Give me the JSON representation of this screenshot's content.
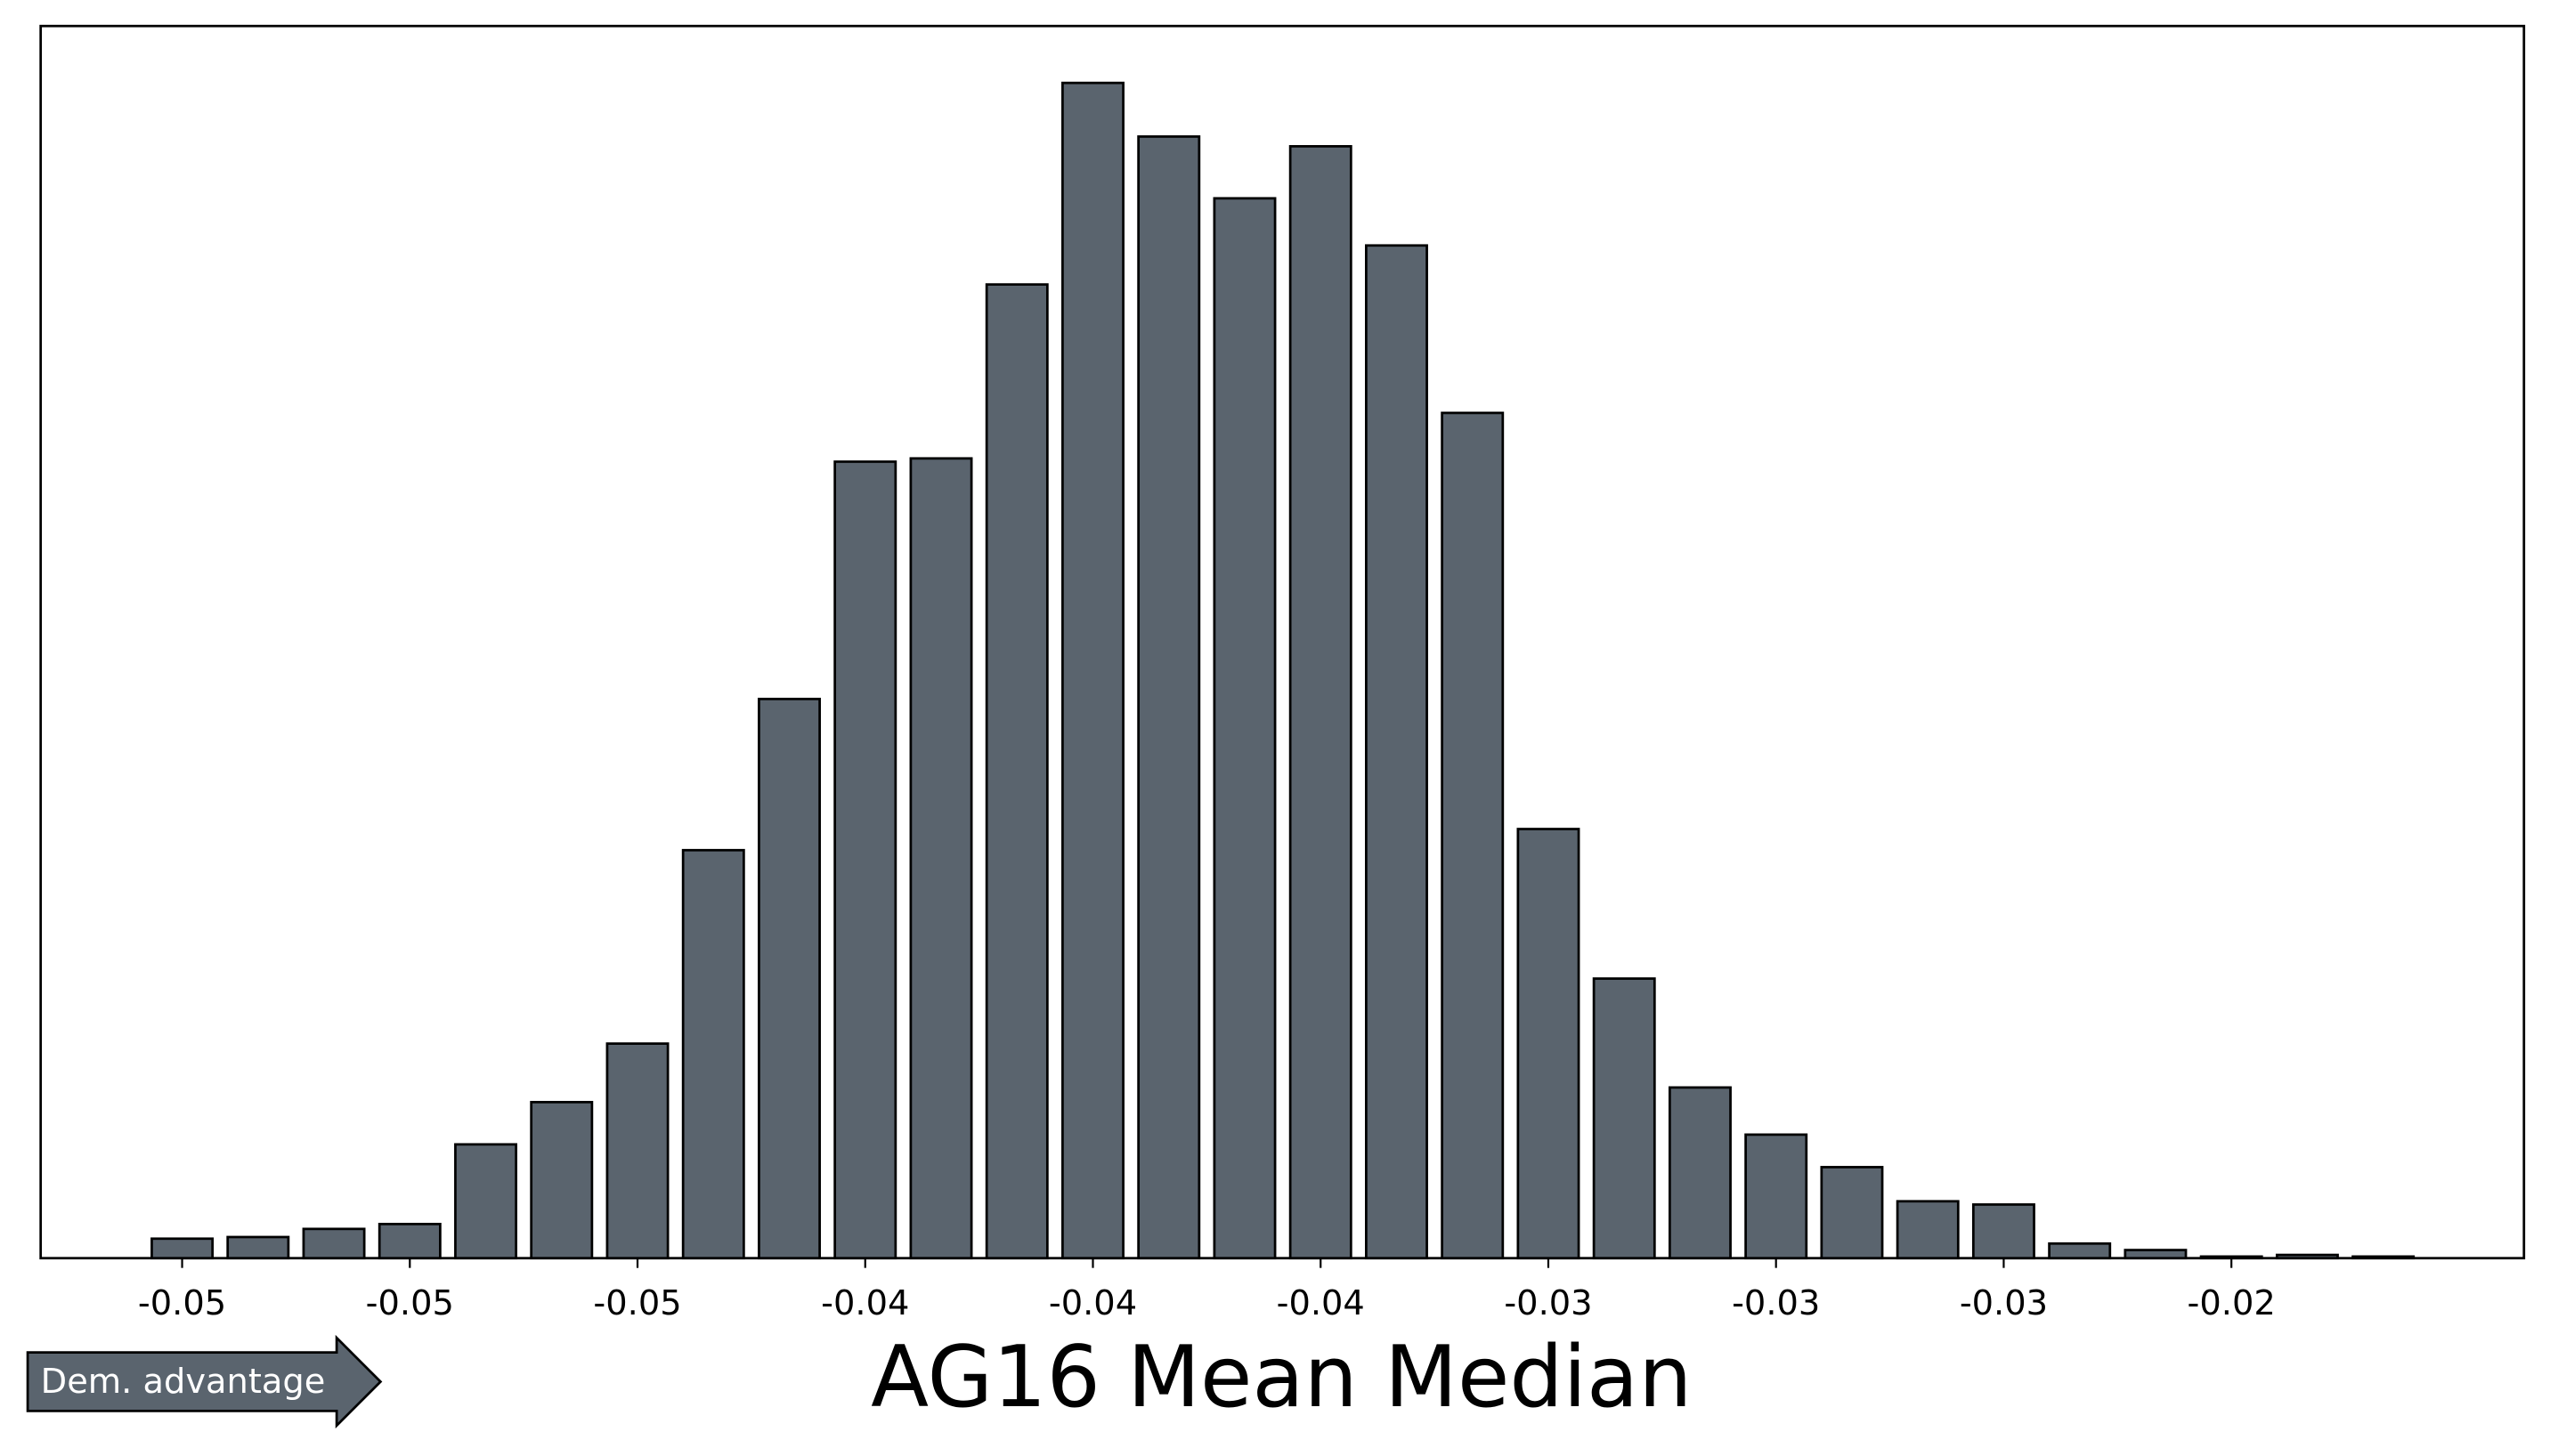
{
  "chart_data": {
    "type": "histogram",
    "xlabel": "AG16 Mean Median",
    "annotation": "Dem. advantage",
    "color": "#5a646e",
    "bins": [
      -0.05405,
      -0.05295,
      -0.05185,
      -0.05075,
      -0.04965,
      -0.04855,
      -0.04745,
      -0.04635,
      -0.04525,
      -0.04415,
      -0.04305,
      -0.04195,
      -0.04085,
      -0.03975,
      -0.03865,
      -0.03755,
      -0.03645,
      -0.03535,
      -0.03425,
      -0.03315,
      -0.03205,
      -0.03095,
      -0.02985,
      -0.02875,
      -0.02765,
      -0.02655,
      -0.02545,
      -0.02435,
      -0.02325,
      -0.02215,
      -0.02105
    ],
    "values": [
      12,
      13,
      18,
      21,
      70,
      96,
      132,
      251,
      344,
      490,
      492,
      599,
      723,
      690,
      652,
      684,
      623,
      520,
      264,
      172,
      105,
      76,
      56,
      35,
      33,
      9,
      5,
      1,
      2,
      1
    ],
    "xlim": [
      -0.05555,
      -0.01956
    ],
    "ylim": [
      0,
      758
    ],
    "xticks": [
      {
        "value": -0.0535,
        "label": "-0.05"
      },
      {
        "value": -0.0502,
        "label": "-0.05"
      },
      {
        "value": -0.0469,
        "label": "-0.05"
      },
      {
        "value": -0.0436,
        "label": "-0.04"
      },
      {
        "value": -0.0403,
        "label": "-0.04"
      },
      {
        "value": -0.037,
        "label": "-0.04"
      },
      {
        "value": -0.0337,
        "label": "-0.03"
      },
      {
        "value": -0.0304,
        "label": "-0.03"
      },
      {
        "value": -0.0271,
        "label": "-0.03"
      },
      {
        "value": -0.0238,
        "label": "-0.02"
      }
    ]
  }
}
